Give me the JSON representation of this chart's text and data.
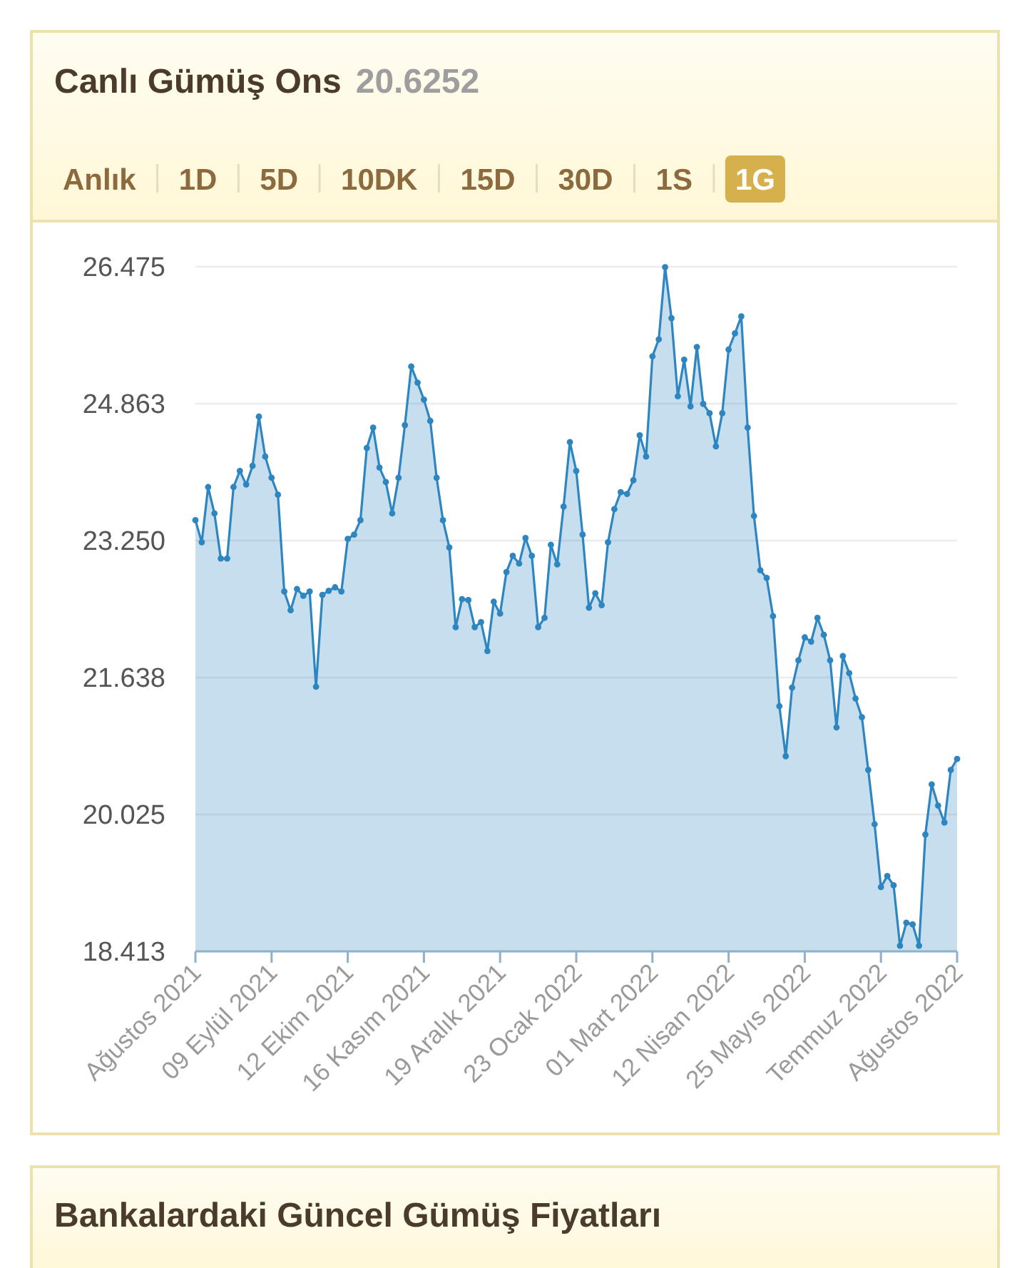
{
  "chart_data": {
    "type": "area",
    "title": "Canlı Gümüş Ons",
    "subtitle": "20.6252",
    "annotations": [
      "Anlık",
      "1D",
      "5D",
      "10DK",
      "15D",
      "30D",
      "1S",
      "1G",
      "Bankalardaki Güncel Gümüş Fiyatları"
    ],
    "categories": [
      "Ağustos 2021",
      null,
      null,
      null,
      null,
      null,
      null,
      null,
      null,
      null,
      null,
      null,
      "09 Eylül 2021",
      null,
      null,
      null,
      null,
      null,
      null,
      null,
      null,
      null,
      null,
      null,
      "12 Ekim 2021",
      null,
      null,
      null,
      null,
      null,
      null,
      null,
      null,
      null,
      null,
      null,
      "16 Kasım 2021",
      null,
      null,
      null,
      null,
      null,
      null,
      null,
      null,
      null,
      null,
      null,
      "19 Aralık 2021",
      null,
      null,
      null,
      null,
      null,
      null,
      null,
      null,
      null,
      null,
      null,
      "23 Ocak 2022",
      null,
      null,
      null,
      null,
      null,
      null,
      null,
      null,
      null,
      null,
      null,
      "01 Mart 2022",
      null,
      null,
      null,
      null,
      null,
      null,
      null,
      null,
      null,
      null,
      null,
      "12 Nisan 2022",
      null,
      null,
      null,
      null,
      null,
      null,
      null,
      null,
      null,
      null,
      null,
      "25 Mayıs 2022",
      null,
      null,
      null,
      null,
      null,
      null,
      null,
      null,
      null,
      null,
      null,
      "Temmuz 2022",
      null,
      null,
      null,
      null,
      null,
      null,
      null,
      null,
      null,
      null,
      null,
      "Ağustos 2022"
    ],
    "values": [
      23.49,
      23.23,
      23.88,
      23.57,
      23.04,
      23.04,
      23.88,
      24.07,
      23.91,
      24.13,
      24.71,
      24.24,
      23.99,
      23.79,
      22.65,
      22.43,
      22.68,
      22.6,
      22.65,
      21.53,
      22.61,
      22.66,
      22.7,
      22.65,
      23.27,
      23.32,
      23.49,
      24.34,
      24.58,
      24.11,
      23.94,
      23.57,
      23.99,
      24.61,
      25.3,
      25.11,
      24.91,
      24.66,
      23.99,
      23.49,
      23.17,
      22.23,
      22.56,
      22.55,
      22.23,
      22.29,
      21.95,
      22.53,
      22.39,
      22.88,
      23.07,
      22.98,
      23.28,
      23.07,
      22.23,
      22.34,
      23.2,
      22.97,
      23.65,
      24.41,
      24.07,
      23.32,
      22.46,
      22.63,
      22.49,
      23.23,
      23.62,
      23.82,
      23.8,
      23.96,
      24.49,
      24.24,
      25.42,
      25.62,
      26.47,
      25.87,
      24.95,
      25.38,
      24.83,
      25.53,
      24.86,
      24.75,
      24.36,
      24.75,
      25.5,
      25.69,
      25.89,
      24.58,
      23.54,
      22.9,
      22.81,
      22.36,
      21.3,
      20.71,
      21.52,
      21.84,
      22.11,
      22.06,
      22.34,
      22.14,
      21.84,
      21.05,
      21.89,
      21.69,
      21.39,
      21.17,
      20.55,
      19.91,
      19.17,
      19.3,
      19.19,
      18.48,
      18.75,
      18.73,
      18.48,
      19.79,
      20.38,
      20.13,
      19.93,
      20.55,
      20.68
    ],
    "color": "#2e86c1",
    "marker": "circle",
    "grid": "y",
    "ylim": [
      18.413,
      26.475
    ],
    "yticks": [
      18.413,
      20.025,
      21.638,
      {
        "value": 23.25,
        "label": "23.250"
      },
      24.863,
      26.475
    ]
  }
}
